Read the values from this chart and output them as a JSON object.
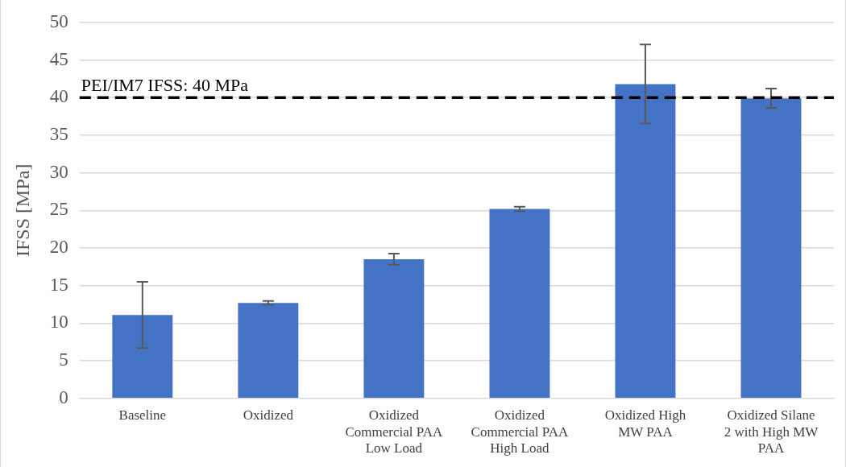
{
  "chart_data": {
    "type": "bar",
    "ylabel": "IFSS [MPa]",
    "categories": [
      "Baseline",
      "Oxidized",
      "Oxidized Commercial PAA Low Load",
      "Oxidized Commercial PAA High Load",
      "Oxidized High MW PAA",
      "Oxidized Silane 2 with High MW PAA"
    ],
    "values": [
      11.1,
      12.7,
      18.5,
      25.2,
      41.8,
      39.9
    ],
    "errors": [
      4.4,
      0.25,
      0.75,
      0.3,
      5.25,
      1.3
    ],
    "color": "#4472c4",
    "ylim": [
      0,
      50
    ],
    "yticks": [
      0,
      5,
      10,
      15,
      20,
      25,
      30,
      35,
      40,
      45,
      50
    ],
    "grid": "y",
    "legend": false,
    "ref_lines": [
      {
        "axis": "y",
        "value": 40,
        "label": "PEI/IM7 IFSS: 40 MPa",
        "color": "#000000",
        "line_style": "dashed"
      }
    ]
  }
}
